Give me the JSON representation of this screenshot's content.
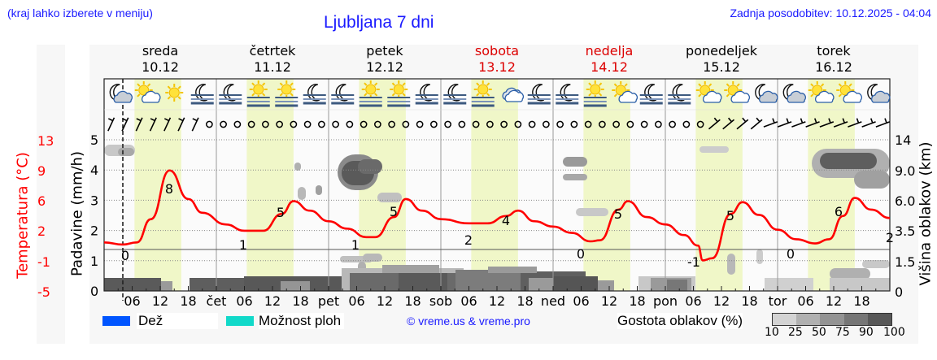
{
  "header": {
    "note": "(kraj lahko izberete v meniju)",
    "title": "Ljubljana 7 dni",
    "updated": "Zadnja posodobitev: 10.12.2025 - 04:04"
  },
  "days": [
    {
      "name": "sreda",
      "date": "10.12",
      "weekend": false
    },
    {
      "name": "četrtek",
      "date": "11.12",
      "weekend": false
    },
    {
      "name": "petek",
      "date": "12.12",
      "weekend": false
    },
    {
      "name": "sobota",
      "date": "13.12",
      "weekend": true
    },
    {
      "name": "nedelja",
      "date": "14.12",
      "weekend": true
    },
    {
      "name": "ponedeljek",
      "date": "15.12",
      "weekend": false
    },
    {
      "name": "torek",
      "date": "16.12",
      "weekend": false
    }
  ],
  "icons": [
    "moon-cloud",
    "sun-cloud",
    "sun",
    "moon-fog",
    "moon-fog",
    "sun-fog",
    "sun-fog",
    "moon-fog",
    "moon-fog",
    "sun-fog",
    "sun-fog",
    "moon-fog",
    "moon-fog",
    "sun-fog",
    "cloud",
    "moon-fog",
    "moon-fog",
    "sun-fog",
    "sun-cloud",
    "moon-fog",
    "moon-fog",
    "sun-cloud",
    "sun-cloud",
    "moon-cloud",
    "moon-cloud",
    "sun-cloud",
    "sun-cloud",
    "moon-cloud"
  ],
  "axes": {
    "temp_label": "Temperatura (°C)",
    "temp_ticks": [
      "13",
      "9",
      "6",
      "2",
      "-1",
      "-5"
    ],
    "rain_label": "Padavine (mm/h)",
    "rain_ticks": [
      "5",
      "4",
      "3",
      "2",
      "1",
      "0"
    ],
    "cloud_label": "Višina oblakov (km)",
    "cloud_ticks": [
      "14",
      "9.0",
      "6.0",
      "3.5",
      "1.5",
      "0"
    ],
    "x_ticks": [
      "06",
      "12",
      "18",
      "čet",
      "06",
      "12",
      "18",
      "pet",
      "06",
      "12",
      "18",
      "sob",
      "06",
      "12",
      "18",
      "ned",
      "06",
      "12",
      "18",
      "pon",
      "06",
      "12",
      "18",
      "tor",
      "06",
      "12",
      "18"
    ]
  },
  "legend": {
    "rain": "Dež",
    "rain_color": "#0055ff",
    "showers": "Možnost ploh",
    "showers_color": "#11d9c9",
    "credit": "© vreme.us & vreme.pro",
    "density_label": "Gostota oblakov (%)",
    "density_ticks": [
      "10",
      "25",
      "50",
      "75",
      "90",
      "100"
    ],
    "density_colors": [
      "#d3d3d3",
      "#b0b0b0",
      "#939393",
      "#767676",
      "#585858"
    ]
  },
  "colors": {
    "temperature": "#ff0000",
    "weekend": "#dd0000",
    "daylight_band": "#f0f7c8",
    "link": "#1a1aff"
  },
  "chart_data": {
    "type": "line",
    "title": "Ljubljana 7 dni",
    "xlabel": "",
    "ylabel": "Temperatura (°C)",
    "ylabel_secondary": [
      "Padavine (mm/h)",
      "Višina oblakov (km)"
    ],
    "x_range": [
      "10.12 00:00",
      "16.12 24:00"
    ],
    "series": [
      {
        "name": "Temperatura",
        "extremes": [
          {
            "label": "0",
            "day": "sreda",
            "time": "02",
            "value": 0
          },
          {
            "label": "8",
            "day": "sreda",
            "time": "14",
            "value": 8
          },
          {
            "label": "1",
            "day": "četrtek",
            "time": "06",
            "value": 1
          },
          {
            "label": "5",
            "day": "četrtek",
            "time": "14",
            "value": 5
          },
          {
            "label": "1",
            "day": "petek",
            "time": "06",
            "value": 1
          },
          {
            "label": "5",
            "day": "petek",
            "time": "14",
            "value": 5
          },
          {
            "label": "2",
            "day": "sobota",
            "time": "06",
            "value": 2
          },
          {
            "label": "4",
            "day": "sobota",
            "time": "14",
            "value": 4
          },
          {
            "label": "0",
            "day": "nedelja",
            "time": "06",
            "value": 0
          },
          {
            "label": "5",
            "day": "nedelja",
            "time": "14",
            "value": 5
          },
          {
            "label": "-1",
            "day": "ponedeljek",
            "time": "06",
            "value": -1
          },
          {
            "label": "5",
            "day": "ponedeljek",
            "time": "14",
            "value": 5
          },
          {
            "label": "0",
            "day": "torek",
            "time": "06",
            "value": 0
          },
          {
            "label": "6",
            "day": "torek",
            "time": "14",
            "value": 6
          },
          {
            "label": "2",
            "day": "torek",
            "time": "24",
            "value": 2
          }
        ]
      },
      {
        "name": "Padavine",
        "values": "0 throughout"
      }
    ],
    "ylim_temperature": [
      -5,
      13
    ],
    "ylim_rain": [
      0,
      5
    ],
    "ylim_cloud_km": [
      0,
      14
    ],
    "grid": true,
    "legend_position": "bottom"
  }
}
